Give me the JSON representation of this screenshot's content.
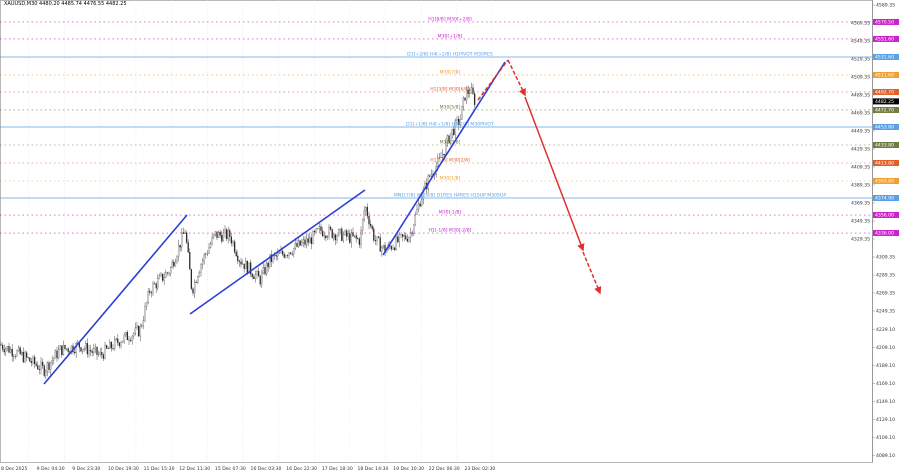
{
  "header": {
    "title": "XAUUSD,M30  4480.20 4485.74 4476.55 4482.25"
  },
  "colors": {
    "background": "#ffffff",
    "grid": "#d8d8e8",
    "candle": "#222222",
    "trendline": "#2b3fd6",
    "projection": "#e03030",
    "magenta": "#cc22cc",
    "blue": "#5aa0e6",
    "orange": "#f0a030",
    "orangered": "#e0602a",
    "green": "#6e7e40",
    "current_price": "#000000"
  },
  "chart_data": {
    "type": "candlestick",
    "symbol": "XAUUSD",
    "timeframe": "M30",
    "ohlc_last": {
      "open": 4480.2,
      "high": 4485.74,
      "low": 4476.55,
      "close": 4482.25
    },
    "ylim": [
      4080,
      4589.35
    ],
    "y_ticks": [
      "4589.35",
      "4569.35",
      "4549.35",
      "4529.35",
      "4509.35",
      "4489.35",
      "4469.35",
      "4449.35",
      "4429.35",
      "4409.35",
      "4389.35",
      "4369.35",
      "4349.35",
      "4329.35",
      "4309.35",
      "4289.35",
      "4269.35",
      "4249.35",
      "4229.10",
      "4209.10",
      "4189.10",
      "4169.10",
      "4149.10",
      "4129.10",
      "4109.10",
      "4089.10"
    ],
    "x_ticks": [
      "8 Dec 2025",
      "9 Dec 04:30",
      "9 Dec 23:30",
      "10 Dec 19:30",
      "11 Dec 15:30",
      "12 Dec 11:30",
      "15 Dec 07:30",
      "16 Dec 03:30",
      "16 Dec 22:30",
      "17 Dec 18:30",
      "18 Dec 14:30",
      "19 Dec 10:30",
      "22 Dec 06:30",
      "23 Dec 02:30"
    ],
    "price_path": [
      [
        "8 Dec 2025",
        4212
      ],
      [
        "9 Dec 04:30",
        4184
      ],
      [
        "9 Dec 23:30",
        4206
      ],
      [
        "10 Dec 19:30",
        4217
      ],
      [
        "11 Dec 15:30",
        4273
      ],
      [
        "12 Dec 11:30",
        4339
      ],
      [
        "12 Dec 11:30",
        4272
      ],
      [
        "15 Dec 07:30",
        4334
      ],
      [
        "16 Dec 03:30",
        4284
      ],
      [
        "16 Dec 22:30",
        4317
      ],
      [
        "17 Dec 18:30",
        4328
      ],
      [
        "18 Dec 14:30",
        4367
      ],
      [
        "18 Dec 14:30",
        4306
      ],
      [
        "19 Dec 10:30",
        4330
      ],
      [
        "22 Dec 06:30",
        4445
      ],
      [
        "23 Dec 02:30",
        4482.25
      ]
    ],
    "current_price": "4482.25",
    "levels": [
      {
        "price": "4570.50",
        "label": "H1[8/8] M30[+2/8]",
        "color": "magenta",
        "style": "dotted"
      },
      {
        "price": "4551.60",
        "label": "M30[+1/8]",
        "color": "magenta",
        "style": "dotted"
      },
      {
        "price": "4531.60",
        "label": "D1[+2/8] H4[+2/8] H1PIVOT M30RES",
        "color": "blue",
        "style": "solid"
      },
      {
        "price": "4511.60",
        "label": "M30[7/8]",
        "color": "orange",
        "style": "dotted"
      },
      {
        "price": "4492.70",
        "label": "H1[3/8] M30[6/8]",
        "color": "orangered",
        "style": "dotted"
      },
      {
        "price": "4472.70",
        "label": "M30[5/8]",
        "color": "green",
        "style": "dotted"
      },
      {
        "price": "4453.80",
        "label": "D1[+1/8] H4[+1/8] H1[2/8] M30PIVOT",
        "color": "blue",
        "style": "solid"
      },
      {
        "price": "4433.80",
        "label": "M30[3/8]",
        "color": "green",
        "style": "dotted"
      },
      {
        "price": "4413.80",
        "label": "H1[1/8] M30[2/8]",
        "color": "orangered",
        "style": "dotted"
      },
      {
        "price": "4393.80",
        "label": "M30[1/8]",
        "color": "orange",
        "style": "dotted"
      },
      {
        "price": "4374.90",
        "label": "MN1[7/8] W1[8/8] D1RES H4RES H1SUP M30SUP",
        "color": "blue",
        "style": "solid"
      },
      {
        "price": "4356.00",
        "label": "M30[-1/8]",
        "color": "magenta",
        "style": "dotted"
      },
      {
        "price": "4336.00",
        "label": "H1[-1/8] M30[-2/8]",
        "color": "magenta",
        "style": "dotted"
      }
    ],
    "trendlines": [
      {
        "from": [
          "9 Dec 04:30",
          4184
        ],
        "to": [
          "12 Dec 11:30",
          4372
        ]
      },
      {
        "from": [
          "12 Dec 11:30",
          4271
        ],
        "to": [
          "18 Dec 14:30",
          4409
        ]
      },
      {
        "from": [
          "19 Dec 10:30",
          4311
        ],
        "to": [
          "23 Dec 02:30",
          4525
        ]
      }
    ],
    "projection": [
      [
        "23 Dec 02:30",
        4483.8
      ],
      [
        "23 Dec 02:30",
        4528
      ],
      [
        "23 Dec 02:30",
        4489
      ],
      [
        "23 Dec 02:30",
        4317
      ],
      [
        "23 Dec 02:30",
        4269
      ]
    ],
    "grid": true
  }
}
